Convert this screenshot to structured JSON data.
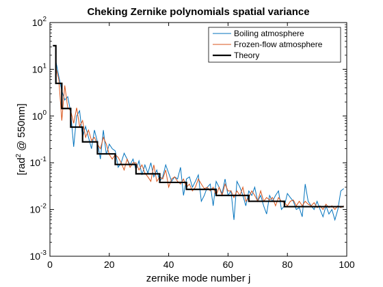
{
  "chart_data": {
    "type": "line",
    "title": "Cheking Zernike polynomials spatial variance",
    "xlabel": "zernike mode number j",
    "ylabel_prefix": "[rad",
    "ylabel_sup": "2",
    "ylabel_suffix": " @ 550nm]",
    "xlim": [
      0,
      100
    ],
    "ylim": [
      0.001,
      100
    ],
    "yscale": "log",
    "grid": false,
    "legend_position": "top-right",
    "x_ticks": [
      0,
      20,
      40,
      60,
      80,
      100
    ],
    "x_tick_labels": [
      "0",
      "20",
      "40",
      "60",
      "80",
      "100"
    ],
    "y_ticks": [
      {
        "value": 100,
        "base": "10",
        "exp": "2"
      },
      {
        "value": 10,
        "base": "10",
        "exp": "1"
      },
      {
        "value": 1,
        "base": "10",
        "exp": "0"
      },
      {
        "value": 0.1,
        "base": "10",
        "exp": "-1"
      },
      {
        "value": 0.01,
        "base": "10",
        "exp": "-2"
      },
      {
        "value": 0.001,
        "base": "10",
        "exp": "-3"
      }
    ],
    "series": [
      {
        "name": "Boiling atmosphere",
        "color": "#0072BD",
        "x": [
          2,
          3,
          4,
          5,
          6,
          7,
          8,
          9,
          10,
          11,
          12,
          13,
          14,
          15,
          16,
          17,
          18,
          19,
          20,
          21,
          22,
          23,
          24,
          25,
          26,
          27,
          28,
          29,
          30,
          31,
          32,
          33,
          34,
          35,
          36,
          37,
          38,
          39,
          40,
          41,
          42,
          43,
          44,
          45,
          46,
          47,
          48,
          49,
          50,
          51,
          52,
          53,
          54,
          55,
          56,
          57,
          58,
          59,
          60,
          61,
          62,
          63,
          64,
          65,
          66,
          67,
          68,
          69,
          70,
          71,
          72,
          73,
          74,
          75,
          76,
          77,
          78,
          79,
          80,
          81,
          82,
          83,
          84,
          85,
          86,
          87,
          88,
          89,
          90,
          91,
          92,
          93,
          94,
          95,
          96,
          97,
          98,
          99
        ],
        "y": [
          15,
          7,
          3.5,
          2.2,
          2.6,
          1.2,
          0.22,
          1.0,
          1.3,
          0.35,
          0.6,
          0.35,
          0.2,
          0.5,
          0.28,
          0.12,
          0.5,
          0.15,
          0.25,
          0.2,
          0.18,
          0.08,
          0.1,
          0.16,
          0.12,
          0.09,
          0.12,
          0.07,
          0.11,
          0.055,
          0.09,
          0.06,
          0.1,
          0.05,
          0.07,
          0.04,
          0.05,
          0.09,
          0.06,
          0.04,
          0.05,
          0.045,
          0.08,
          0.02,
          0.045,
          0.05,
          0.03,
          0.04,
          0.055,
          0.015,
          0.02,
          0.03,
          0.035,
          0.012,
          0.04,
          0.03,
          0.022,
          0.045,
          0.02,
          0.025,
          0.006,
          0.04,
          0.03,
          0.02,
          0.012,
          0.025,
          0.02,
          0.03,
          0.015,
          0.02,
          0.012,
          0.008,
          0.02,
          0.015,
          0.02,
          0.025,
          0.01,
          0.012,
          0.022,
          0.018,
          0.015,
          0.01,
          0.011,
          0.007,
          0.035,
          0.015,
          0.012,
          0.01,
          0.015,
          0.01,
          0.007,
          0.012,
          0.008,
          0.01,
          0.006,
          0.01,
          0.025,
          0.028
        ]
      },
      {
        "name": "Frozen-flow atmosphere",
        "color": "#D95319",
        "x": [
          2,
          3,
          4,
          5,
          6,
          7,
          8,
          9,
          10,
          11,
          12,
          13,
          14,
          15,
          16,
          17,
          18,
          19,
          20,
          21,
          22,
          23,
          24,
          25,
          26,
          27,
          28,
          29,
          30,
          31,
          32,
          33,
          34,
          35,
          36,
          37,
          38,
          39,
          40,
          41,
          42,
          43,
          44,
          45,
          46,
          47,
          48,
          49,
          50,
          51,
          52,
          53,
          54,
          55,
          56,
          57,
          58,
          59,
          60,
          61,
          62,
          63,
          64,
          65,
          66,
          67,
          68,
          69,
          70,
          71,
          72,
          73,
          74,
          75,
          76,
          77,
          78,
          79,
          80,
          81,
          82,
          83,
          84,
          85,
          86,
          87,
          88,
          89,
          90,
          91,
          92,
          93,
          94,
          95,
          96,
          97,
          98,
          99
        ],
        "y": [
          11,
          6,
          0.8,
          4.5,
          1.5,
          1.3,
          0.7,
          1.5,
          0.6,
          0.8,
          0.35,
          0.5,
          0.3,
          0.35,
          0.25,
          0.2,
          0.35,
          0.25,
          0.15,
          0.12,
          0.15,
          0.13,
          0.1,
          0.07,
          0.12,
          0.08,
          0.1,
          0.1,
          0.07,
          0.09,
          0.06,
          0.05,
          0.04,
          0.09,
          0.04,
          0.05,
          0.045,
          0.07,
          0.03,
          0.045,
          0.05,
          0.04,
          0.035,
          0.045,
          0.03,
          0.035,
          0.025,
          0.03,
          0.045,
          0.035,
          0.028,
          0.03,
          0.025,
          0.03,
          0.02,
          0.03,
          0.02,
          0.035,
          0.025,
          0.025,
          0.018,
          0.025,
          0.02,
          0.03,
          0.015,
          0.018,
          0.025,
          0.02,
          0.015,
          0.025,
          0.015,
          0.018,
          0.016,
          0.018,
          0.012,
          0.018,
          0.015,
          0.014,
          0.012,
          0.015,
          0.016,
          0.012,
          0.015,
          0.012,
          0.015,
          0.013,
          0.012,
          0.014,
          0.011,
          0.012,
          0.01,
          0.013,
          0.011,
          0.012,
          0.01,
          0.012,
          0.011,
          0.012
        ]
      },
      {
        "name": "Theory",
        "color": "#000000",
        "step": true,
        "x": [
          1,
          2,
          2,
          4,
          4,
          7,
          7,
          11,
          11,
          16,
          16,
          22,
          22,
          29,
          29,
          37,
          37,
          46,
          46,
          56,
          56,
          67,
          67,
          79,
          79,
          92,
          92,
          99
        ],
        "y": [
          32,
          32,
          5,
          5,
          1.45,
          1.45,
          0.58,
          0.58,
          0.28,
          0.28,
          0.155,
          0.155,
          0.092,
          0.092,
          0.058,
          0.058,
          0.038,
          0.038,
          0.027,
          0.027,
          0.02,
          0.02,
          0.015,
          0.015,
          0.0115,
          0.0115,
          0.0115,
          0.0115
        ]
      }
    ]
  }
}
